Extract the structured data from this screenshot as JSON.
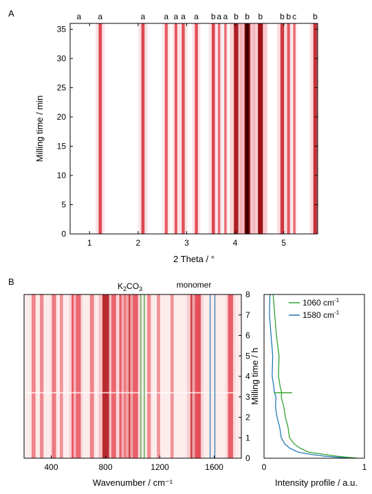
{
  "panels": {
    "A": {
      "label": "A"
    },
    "B": {
      "label": "B"
    }
  },
  "colors": {
    "heat_light": "#ffffff",
    "heat_mid": "#e8505a",
    "heat_dark": "#8b0000",
    "green": "#2ca02c",
    "blue": "#1f77b4"
  },
  "chart_data": [
    {
      "type": "heatmap",
      "panel": "A",
      "xlabel": "2 Theta / °",
      "ylabel": "Milling time / min",
      "xlim": [
        0.6,
        5.7
      ],
      "ylim": [
        0,
        36
      ],
      "xticks": [
        1,
        2,
        3,
        4,
        5
      ],
      "yticks": [
        0,
        5,
        10,
        15,
        20,
        25,
        30,
        35
      ],
      "peaks": [
        {
          "x": 1.22,
          "label": "a",
          "intensity": 0.45
        },
        {
          "x": 2.1,
          "label": "a",
          "intensity": 0.45
        },
        {
          "x": 2.58,
          "label": "a",
          "intensity": 0.35
        },
        {
          "x": 2.78,
          "label": "a",
          "intensity": 0.35
        },
        {
          "x": 2.93,
          "label": "a",
          "intensity": 0.4
        },
        {
          "x": 3.2,
          "label": "a",
          "intensity": 0.4
        },
        {
          "x": 3.55,
          "label": "b",
          "intensity": 0.45
        },
        {
          "x": 3.67,
          "label": "a",
          "intensity": 0.25
        },
        {
          "x": 3.8,
          "label": "a",
          "intensity": 0.25
        },
        {
          "x": 4.02,
          "label": "b",
          "intensity": 0.75
        },
        {
          "x": 4.25,
          "label": "b",
          "intensity": 1.0
        },
        {
          "x": 4.52,
          "label": "b",
          "intensity": 0.85
        },
        {
          "x": 4.97,
          "label": "b",
          "intensity": 0.55
        },
        {
          "x": 5.1,
          "label": "b",
          "intensity": 0.35
        },
        {
          "x": 5.22,
          "label": "c",
          "intensity": 0.25
        },
        {
          "x": 5.65,
          "label": "b",
          "intensity": 0.6
        }
      ],
      "extra_label": {
        "x": 0.78,
        "label": "a"
      }
    },
    {
      "type": "heatmap",
      "panel": "B",
      "xlabel": "Wavenumber / cm⁻¹",
      "ylabel": "Milling time / h",
      "xlim": [
        200,
        1800
      ],
      "ylim": [
        0,
        8
      ],
      "xticks": [
        400,
        800,
        1200,
        1600
      ],
      "yticks": [
        0,
        1,
        2,
        3,
        4,
        5,
        6,
        7,
        8
      ],
      "bands": [
        {
          "x": 270,
          "intensity": 0.3
        },
        {
          "x": 330,
          "intensity": 0.25
        },
        {
          "x": 420,
          "intensity": 0.35
        },
        {
          "x": 475,
          "intensity": 0.2
        },
        {
          "x": 570,
          "intensity": 0.55
        },
        {
          "x": 600,
          "intensity": 0.45
        },
        {
          "x": 700,
          "intensity": 0.3
        },
        {
          "x": 805,
          "intensity": 0.9
        },
        {
          "x": 860,
          "intensity": 0.45
        },
        {
          "x": 920,
          "intensity": 0.5
        },
        {
          "x": 960,
          "intensity": 0.6
        },
        {
          "x": 995,
          "intensity": 0.75
        },
        {
          "x": 1020,
          "intensity": 0.5
        },
        {
          "x": 1120,
          "intensity": 0.25
        },
        {
          "x": 1190,
          "intensity": 0.2
        },
        {
          "x": 1290,
          "intensity": 0.2
        },
        {
          "x": 1450,
          "intensity": 0.75
        },
        {
          "x": 1480,
          "intensity": 0.6
        },
        {
          "x": 1720,
          "intensity": 0.5
        }
      ],
      "markers": [
        {
          "x": 1060,
          "group": "K2CO3",
          "color": "#2ca02c"
        },
        {
          "x": 1085,
          "group": "K2CO3",
          "color": "#2ca02c"
        },
        {
          "x": 1570,
          "group": "monomer",
          "color": "#1f77b4"
        },
        {
          "x": 1605,
          "group": "monomer",
          "color": "#1f77b4"
        }
      ],
      "annotations": {
        "k2co3": {
          "prefix": "K",
          "sub1": "2",
          "mid": "CO",
          "sub2": "3"
        },
        "monomer": "monomer"
      }
    },
    {
      "type": "line",
      "panel": "B-profile",
      "xlabel": "Intensity profile / a.u.",
      "xlim": [
        0,
        1
      ],
      "ylim": [
        0,
        8
      ],
      "xticks": [
        0,
        1
      ],
      "series": [
        {
          "name": "1060 cm⁻¹",
          "base": "1060 cm",
          "sup": "-1",
          "color": "#2ca02c",
          "y": [
            8.0,
            7.0,
            6.0,
            5.0,
            4.0,
            3.5,
            3.2,
            3.0,
            2.5,
            2.0,
            1.5,
            1.0,
            0.7,
            0.5,
            0.3,
            0.2,
            0.1,
            0.0
          ],
          "x": [
            0.1,
            0.11,
            0.12,
            0.14,
            0.15,
            0.16,
            0.17,
            0.18,
            0.2,
            0.21,
            0.23,
            0.26,
            0.3,
            0.35,
            0.45,
            0.58,
            0.72,
            0.92
          ]
        },
        {
          "name": "1580 cm⁻¹",
          "base": "1580 cm",
          "sup": "-1",
          "color": "#1f77b4",
          "y": [
            8.0,
            7.0,
            6.0,
            5.0,
            4.0,
            3.5,
            3.2,
            3.0,
            2.5,
            2.0,
            1.5,
            1.0,
            0.7,
            0.5,
            0.3,
            0.2,
            0.1,
            0.0
          ],
          "x": [
            0.05,
            0.06,
            0.07,
            0.08,
            0.09,
            0.1,
            0.1,
            0.11,
            0.12,
            0.13,
            0.15,
            0.18,
            0.21,
            0.25,
            0.33,
            0.45,
            0.6,
            0.85
          ]
        }
      ],
      "spike": {
        "y": 3.2,
        "x_start": 0.1,
        "x_end": 0.28
      }
    }
  ]
}
